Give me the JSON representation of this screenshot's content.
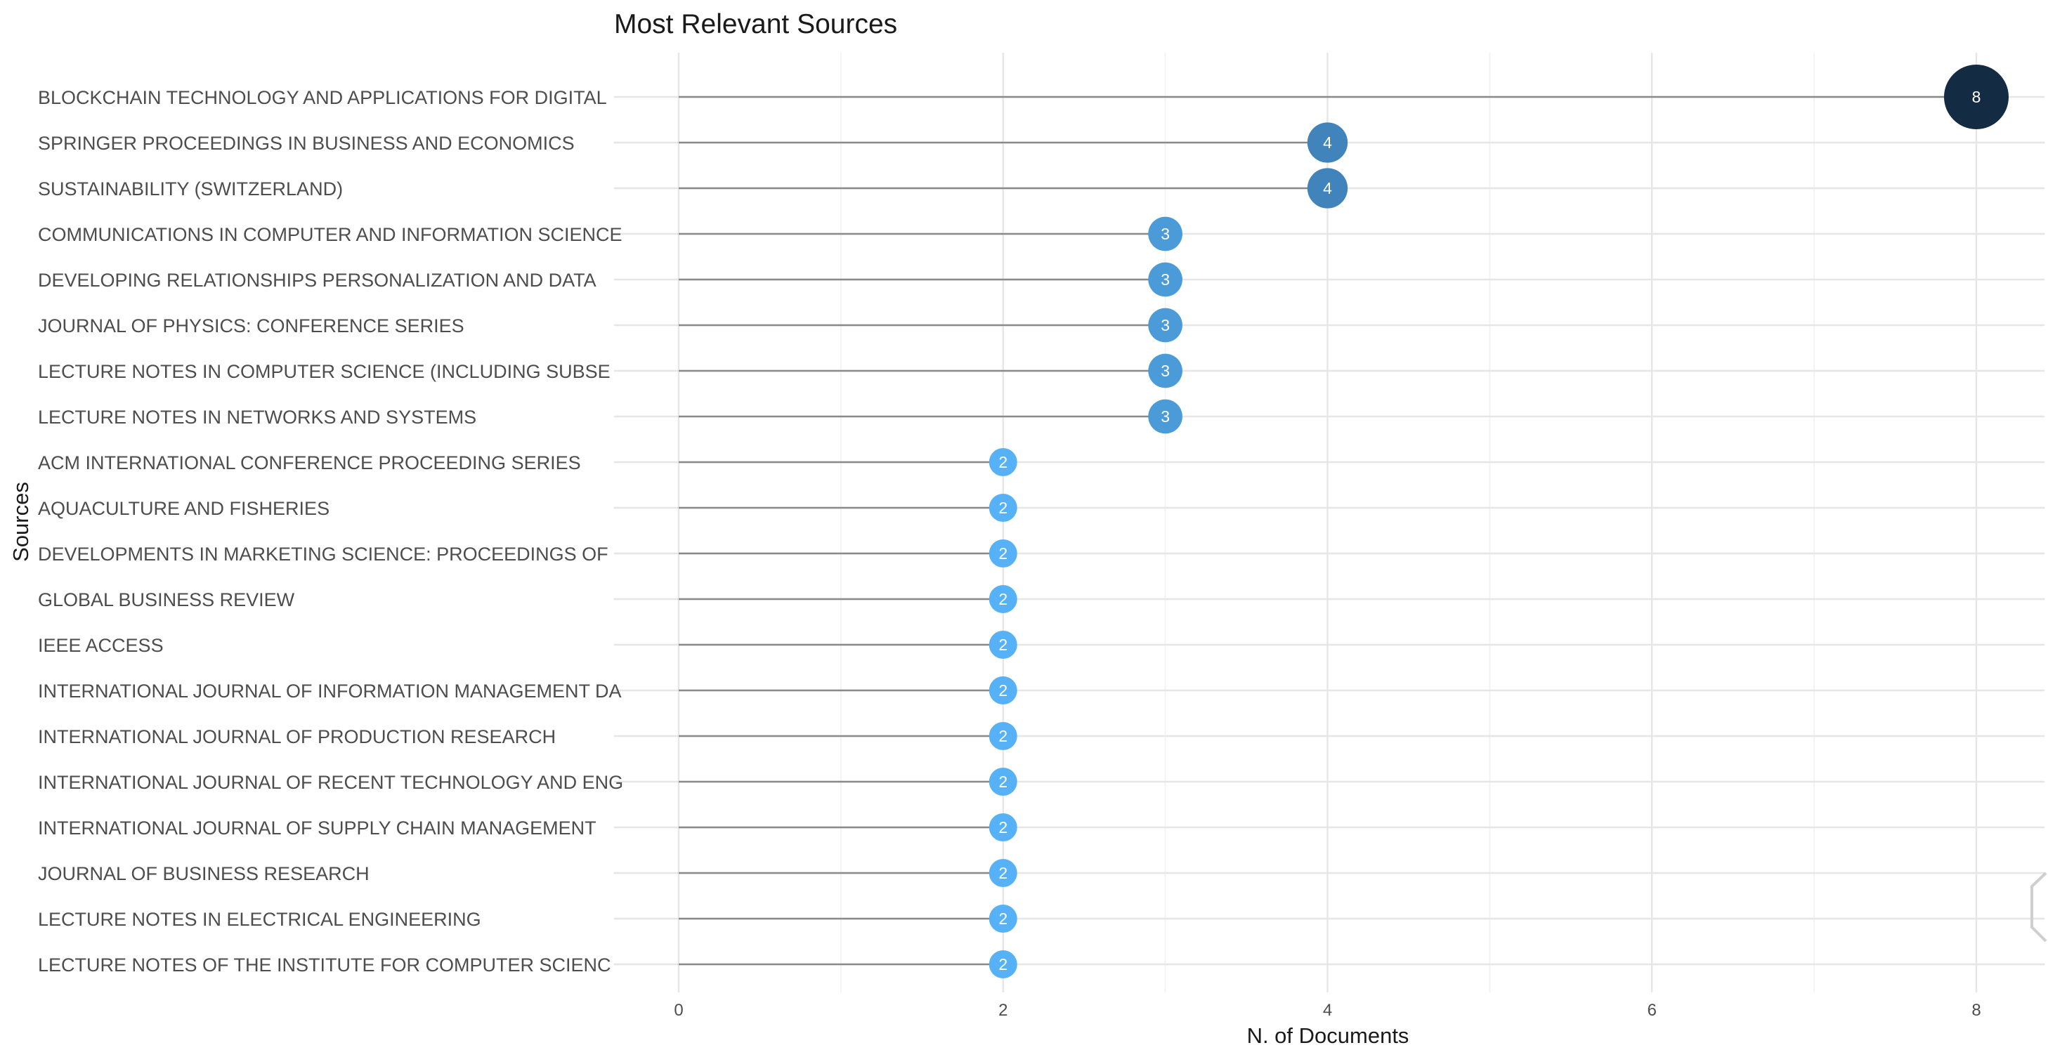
{
  "chart_data": {
    "type": "lollipop",
    "title": "Most Relevant Sources",
    "xlabel": "N. of Documents",
    "ylabel": "Sources",
    "xlim": [
      0,
      8
    ],
    "xticks": [
      0,
      2,
      4,
      6,
      8
    ],
    "grid": true,
    "legend": "none",
    "color_scale": {
      "low": "#56B1F7",
      "high": "#132B43"
    },
    "categories": [
      "BLOCKCHAIN TECHNOLOGY AND APPLICATIONS FOR DIGITAL",
      "SPRINGER PROCEEDINGS IN BUSINESS AND ECONOMICS",
      "SUSTAINABILITY (SWITZERLAND)",
      "COMMUNICATIONS IN COMPUTER AND INFORMATION SCIENCE",
      "DEVELOPING RELATIONSHIPS PERSONALIZATION AND DATA",
      "JOURNAL OF PHYSICS: CONFERENCE SERIES",
      "LECTURE NOTES IN COMPUTER SCIENCE (INCLUDING SUBSE",
      "LECTURE NOTES IN NETWORKS AND SYSTEMS",
      "ACM INTERNATIONAL CONFERENCE PROCEEDING SERIES",
      "AQUACULTURE AND FISHERIES",
      "DEVELOPMENTS IN MARKETING SCIENCE: PROCEEDINGS OF",
      "GLOBAL BUSINESS REVIEW",
      "IEEE ACCESS",
      "INTERNATIONAL JOURNAL OF INFORMATION MANAGEMENT DA",
      "INTERNATIONAL JOURNAL OF PRODUCTION RESEARCH",
      "INTERNATIONAL JOURNAL OF RECENT TECHNOLOGY AND ENG",
      "INTERNATIONAL JOURNAL OF SUPPLY CHAIN MANAGEMENT",
      "JOURNAL OF BUSINESS RESEARCH",
      "LECTURE NOTES IN ELECTRICAL ENGINEERING",
      "LECTURE NOTES OF THE INSTITUTE FOR COMPUTER SCIENC"
    ],
    "values": [
      8,
      4,
      4,
      3,
      3,
      3,
      3,
      3,
      2,
      2,
      2,
      2,
      2,
      2,
      2,
      2,
      2,
      2,
      2,
      2
    ]
  }
}
